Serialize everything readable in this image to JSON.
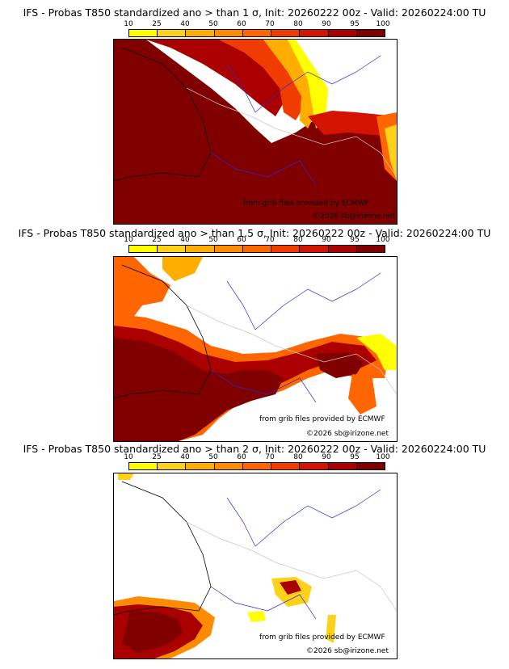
{
  "legend": {
    "ticks": [
      "10",
      "25",
      "40",
      "50",
      "60",
      "70",
      "80",
      "90",
      "95",
      "100"
    ],
    "colors": [
      "#ffff00",
      "#ffd21a",
      "#ffae00",
      "#ff8c00",
      "#ff6600",
      "#f03c00",
      "#d21400",
      "#aa0000",
      "#800000"
    ]
  },
  "panels": [
    {
      "title": "IFS - Probas T850  standardized ano > than 1 σ, Init: 20260222 00z - Valid: 20260224:00 TU",
      "credit": "from grib files provided by ECMWF",
      "copyright": "©2026 sb@irizone.net"
    },
    {
      "title": "IFS - Probas T850  standardized ano > than 1.5 σ, Init: 20260222 00z - Valid: 20260224:00 TU",
      "credit": "from grib files provided by ECMWF",
      "copyright": "©2026 sb@irizone.net"
    },
    {
      "title": "IFS - Probas T850  standardized ano > than 2 σ, Init: 20260222 00z - Valid: 20260224:00 TU",
      "credit": "from grib files provided by ECMWF",
      "copyright": "©2026 sb@irizone.net"
    }
  ]
}
